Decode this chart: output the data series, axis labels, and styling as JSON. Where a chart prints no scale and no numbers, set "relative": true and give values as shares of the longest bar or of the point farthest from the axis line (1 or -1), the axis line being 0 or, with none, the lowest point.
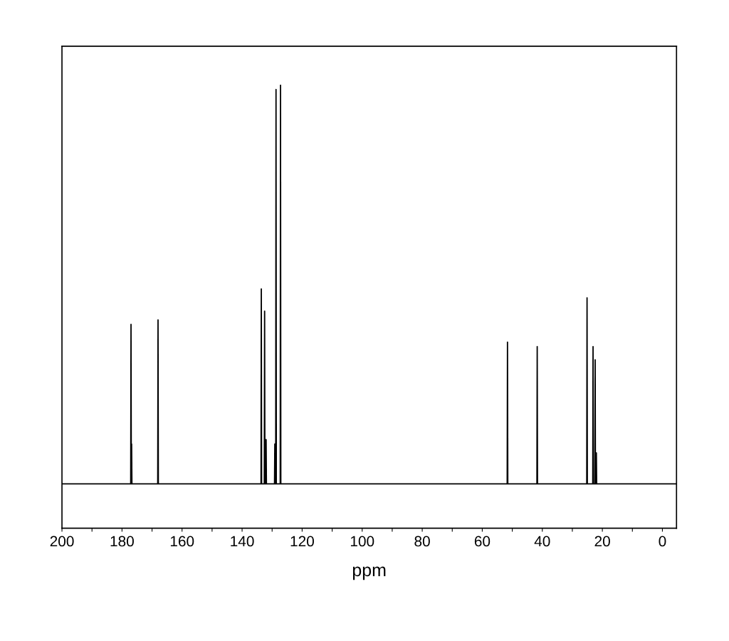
{
  "chart_data": {
    "type": "line",
    "relative": true,
    "xlabel": "ppm",
    "grid": false,
    "legend": false,
    "marker": "none",
    "line_style": "solid",
    "xlim": [
      200,
      -4.7
    ],
    "xticks": [
      200,
      {
        "value": 190,
        "label": null
      },
      180,
      {
        "value": 170,
        "label": null
      },
      160,
      {
        "value": 150,
        "label": null
      },
      140,
      {
        "value": 130,
        "label": null
      },
      120,
      {
        "value": 110,
        "label": null
      },
      100,
      {
        "value": 90,
        "label": null
      },
      80,
      {
        "value": 70,
        "label": null
      },
      60,
      {
        "value": 50,
        "label": null
      },
      40,
      {
        "value": 30,
        "label": null
      },
      20,
      {
        "value": 10,
        "label": null
      },
      0
    ],
    "x": [
      200,
      177.1,
      177.0,
      176.9,
      176.8,
      176.7,
      168.1,
      168.0,
      167.9,
      133.7,
      133.6,
      133.5,
      132.6,
      132.5,
      132.4,
      132.1,
      132.0,
      131.9,
      129.2,
      129.1,
      129.0,
      128.8,
      128.7,
      128.6,
      127.3,
      127.2,
      127.1,
      51.7,
      51.6,
      51.5,
      41.8,
      41.7,
      41.6,
      25.2,
      25.1,
      25.0,
      23.2,
      23.1,
      23.0,
      22.5,
      22.4,
      22.3,
      22.1,
      22.0,
      21.9,
      -4.7
    ],
    "series": [
      {
        "color": "#000000",
        "values": [
          0.1,
          0.1,
          0.46,
          0.1,
          0.19,
          0.1,
          0.1,
          0.47,
          0.1,
          0.1,
          0.54,
          0.1,
          0.1,
          0.49,
          0.1,
          0.1,
          0.2,
          0.1,
          0.1,
          0.19,
          0.1,
          0.1,
          0.99,
          0.1,
          0.1,
          1.0,
          0.1,
          0.1,
          0.42,
          0.1,
          0.1,
          0.41,
          0.1,
          0.1,
          0.52,
          0.1,
          0.1,
          0.41,
          0.1,
          0.1,
          0.38,
          0.1,
          0.1,
          0.17,
          0.1,
          0.1
        ]
      }
    ]
  }
}
